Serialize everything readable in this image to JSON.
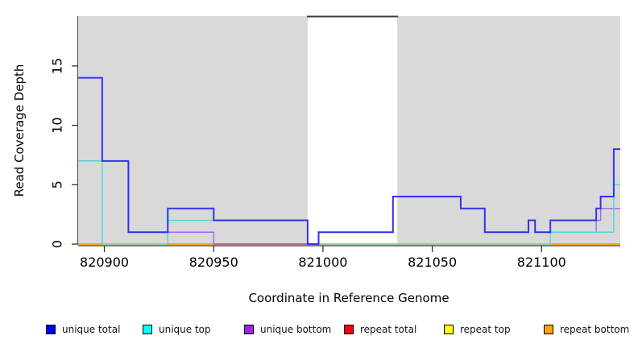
{
  "chart": {
    "xlabel": "Coordinate in Reference Genome",
    "ylabel": "Read Coverage Depth"
  },
  "chart_data": {
    "type": "line",
    "subtype": "step-coverage",
    "title": "",
    "xlabel": "Coordinate in Reference Genome",
    "ylabel": "Read Coverage Depth",
    "xlim": [
      820888,
      821136
    ],
    "ylim": [
      0,
      19.2
    ],
    "x_ticks": [
      820900,
      820950,
      821000,
      821050,
      821100
    ],
    "y_ticks": [
      0,
      5,
      10,
      15
    ],
    "grid": false,
    "legend_position": "bottom",
    "background_shading": {
      "shaded_color": "#d9d9d9",
      "regions": [
        {
          "from": 820888,
          "to": 820993
        },
        {
          "from": 821034,
          "to": 821136
        }
      ],
      "unshaded_gap": {
        "from": 820993,
        "to": 821034,
        "top_border_color": "#3d3d3d"
      }
    },
    "series": [
      {
        "name": "repeat total",
        "color": "#ff0000",
        "draw_color": "#e04444",
        "width": 1.3,
        "steps": [
          [
            820888,
            0
          ],
          [
            821136,
            0
          ]
        ]
      },
      {
        "name": "repeat top",
        "color": "#ffff00",
        "draw_color": "#f0e040",
        "width": 1.3,
        "steps": [
          [
            820888,
            0
          ],
          [
            821136,
            0
          ]
        ]
      },
      {
        "name": "repeat bottom",
        "color": "#ffa500",
        "draw_color": "#ff9e00",
        "width": 1.6,
        "steps": [
          [
            820888,
            0
          ],
          [
            821136,
            0
          ]
        ]
      },
      {
        "name": "unique bottom",
        "color": "#a020f0",
        "draw_color": "#a55ce8",
        "width": 1.4,
        "steps": [
          [
            820888,
            7
          ],
          [
            820911,
            1
          ],
          [
            820950,
            0
          ],
          [
            820998,
            1
          ],
          [
            821032,
            4
          ],
          [
            821063,
            3
          ],
          [
            821074,
            1
          ],
          [
            821094,
            2
          ],
          [
            821097,
            1
          ],
          [
            821125,
            2
          ],
          [
            821127,
            3
          ],
          [
            821136,
            3
          ]
        ]
      },
      {
        "name": "unique top",
        "color": "#00ffff",
        "draw_color": "#45d9d9",
        "width": 1.4,
        "steps": [
          [
            820888,
            7
          ],
          [
            820899,
            0
          ],
          [
            820929,
            2
          ],
          [
            820993,
            0
          ],
          [
            821104,
            1
          ],
          [
            821133,
            5
          ],
          [
            821136,
            5
          ]
        ]
      },
      {
        "name": "unique total",
        "color": "#0000ff",
        "draw_color": "#2a2af0",
        "width": 2,
        "steps": [
          [
            820888,
            14
          ],
          [
            820899,
            7
          ],
          [
            820911,
            1
          ],
          [
            820929,
            3
          ],
          [
            820950,
            2
          ],
          [
            820993,
            0
          ],
          [
            820998,
            1
          ],
          [
            821032,
            4
          ],
          [
            821063,
            3
          ],
          [
            821074,
            1
          ],
          [
            821094,
            2
          ],
          [
            821097,
            1
          ],
          [
            821104,
            2
          ],
          [
            821125,
            3
          ],
          [
            821127,
            4
          ],
          [
            821133,
            8
          ],
          [
            821136,
            8
          ]
        ]
      }
    ],
    "baseline_visible_segments": [
      {
        "from": 820888,
        "to": 820899,
        "color": "#ff9e00",
        "meaning": "repeat bottom at 0"
      },
      {
        "from": 820899,
        "to": 820929,
        "color": "#8ed08e",
        "meaning": "unique top at 0 over repeat lines"
      },
      {
        "from": 820929,
        "to": 820950,
        "color": "#ff9e00",
        "meaning": "repeat bottom at 0"
      },
      {
        "from": 820950,
        "to": 820993,
        "color": "#c4607c",
        "meaning": "unique bottom at 0 over repeat lines"
      },
      {
        "from": 820998,
        "to": 821104,
        "color": "#8ed08e",
        "meaning": "unique top at 0 over repeat lines"
      },
      {
        "from": 821104,
        "to": 821136,
        "color": "#ff9e00",
        "meaning": "repeat bottom at 0"
      }
    ]
  },
  "legend": {
    "items": [
      {
        "label": "unique total",
        "color": "#0000ff"
      },
      {
        "label": "unique top",
        "color": "#00ffff"
      },
      {
        "label": "unique bottom",
        "color": "#a020f0"
      },
      {
        "label": "repeat total",
        "color": "#ff0000"
      },
      {
        "label": "repeat top",
        "color": "#ffff00"
      },
      {
        "label": "repeat bottom",
        "color": "#ffa500"
      }
    ]
  }
}
